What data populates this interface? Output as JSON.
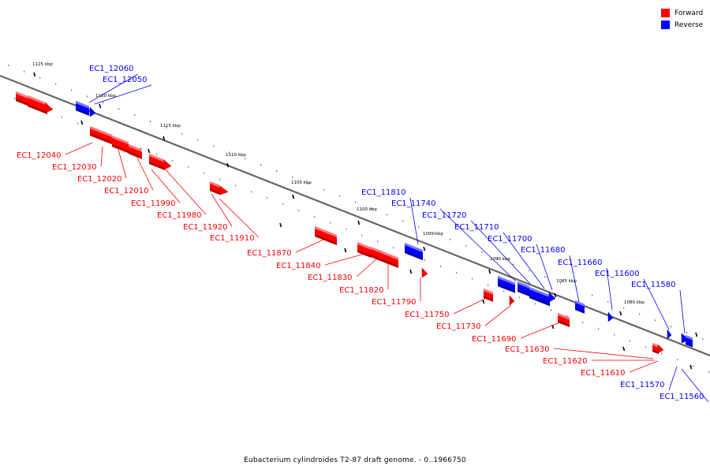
{
  "legend": {
    "forward": {
      "label": "Forward",
      "color": "#ff0000"
    },
    "reverse": {
      "label": "Reverse",
      "color": "#0000ff"
    }
  },
  "caption": "Eubacterium cylindroides T2-87 draft genome. - 0..1966750",
  "scale_labels": [
    "1125 kbp",
    "1120 kbp",
    "1115 kbp",
    "1110 kbp",
    "1105 kbp",
    "1100 kbp",
    "1095 kbp",
    "1090 kbp",
    "1085 kbp",
    "1080 kbp"
  ],
  "genes_forward": [
    "EC1_12040",
    "EC1_12030",
    "EC1_12020",
    "EC1_12010",
    "EC1_11990",
    "EC1_11980",
    "EC1_11920",
    "EC1_11910",
    "EC1_11870",
    "EC1_11840",
    "EC1_11830",
    "EC1_11820",
    "EC1_11790",
    "EC1_11750",
    "EC1_11730",
    "EC1_11690",
    "EC1_11630",
    "EC1_11620",
    "EC1_11610"
  ],
  "genes_reverse": [
    "EC1_12060",
    "EC1_12050",
    "EC1_11810",
    "EC1_11740",
    "EC1_11720",
    "EC1_11710",
    "EC1_11700",
    "EC1_11680",
    "EC1_11660",
    "EC1_11600",
    "EC1_11580",
    "EC1_11570",
    "EC1_11560"
  ]
}
